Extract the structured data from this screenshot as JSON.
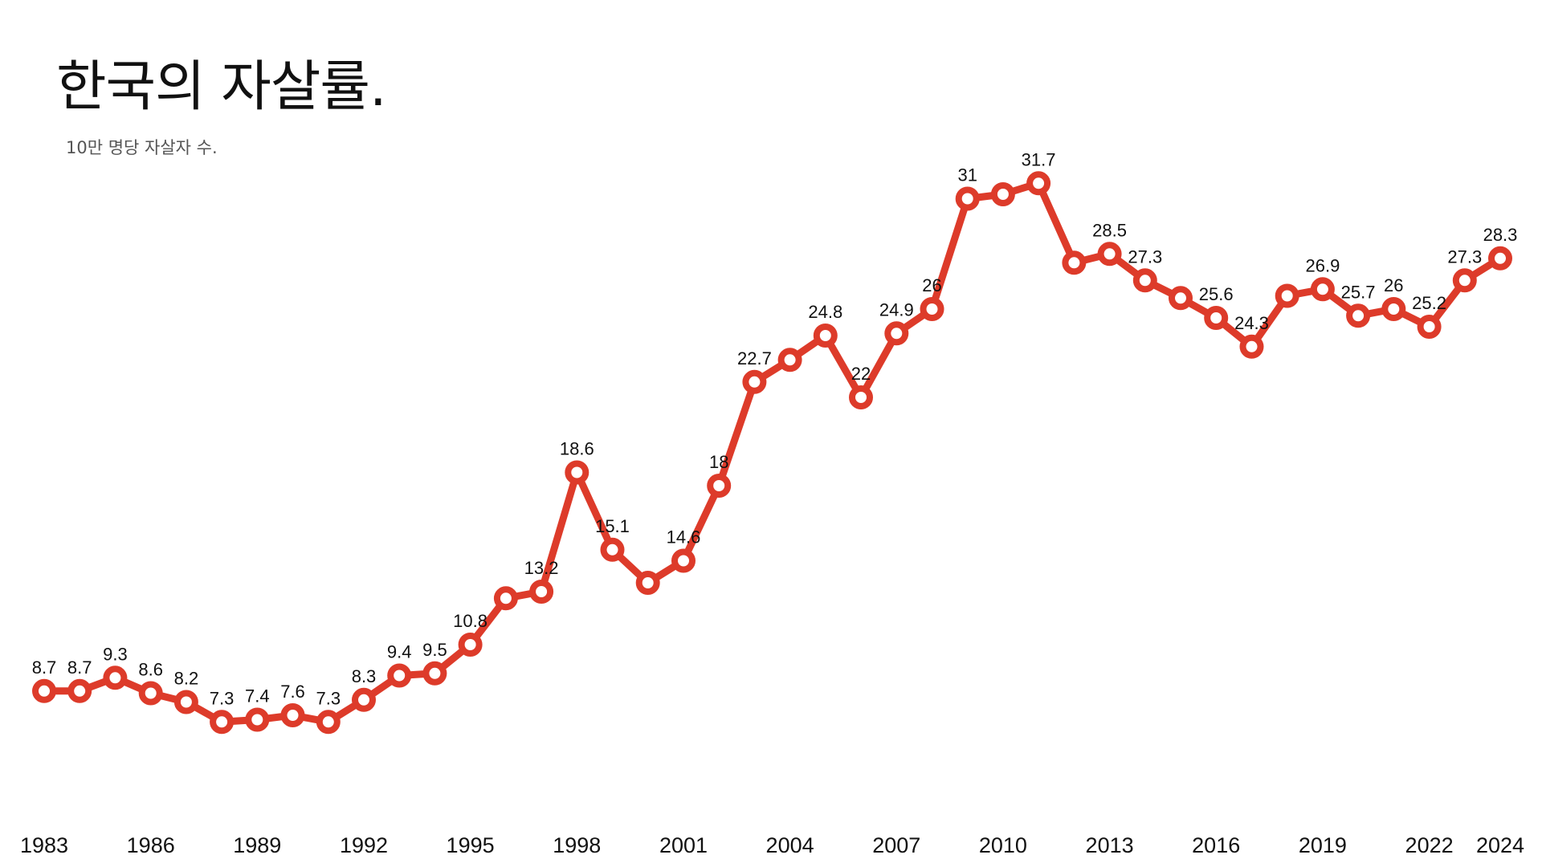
{
  "title": "한국의 자살률.",
  "subtitle": "10만 명당 자살자 수.",
  "colors": {
    "line": "#dd3b2a",
    "marker_fill": "#ffffff",
    "text": "#111111",
    "subtitle": "#555555"
  },
  "chart_data": {
    "type": "line",
    "title": "한국의 자살률.",
    "subtitle": "10만 명당 자살자 수.",
    "xlabel": "",
    "ylabel": "",
    "grid": false,
    "legend": "none",
    "x_ticks": [
      1983,
      1986,
      1989,
      1992,
      1995,
      1998,
      2001,
      2004,
      2007,
      2010,
      2013,
      2016,
      2019,
      2022,
      2024
    ],
    "x": [
      1983,
      1984,
      1985,
      1986,
      1987,
      1988,
      1989,
      1990,
      1991,
      1992,
      1993,
      1994,
      1995,
      1996,
      1997,
      1998,
      1999,
      2000,
      2001,
      2002,
      2003,
      2004,
      2005,
      2006,
      2007,
      2008,
      2009,
      2010,
      2011,
      2012,
      2013,
      2014,
      2015,
      2016,
      2017,
      2018,
      2019,
      2020,
      2021,
      2022,
      2023,
      2024
    ],
    "values": [
      8.7,
      8.7,
      9.3,
      8.6,
      8.2,
      7.3,
      7.4,
      7.6,
      7.3,
      8.3,
      9.4,
      9.5,
      10.8,
      12.9,
      13.2,
      18.6,
      15.1,
      13.6,
      14.6,
      18,
      22.7,
      23.7,
      24.8,
      22,
      24.9,
      26,
      31,
      31.2,
      31.7,
      28.1,
      28.5,
      27.3,
      26.5,
      25.6,
      24.3,
      26.6,
      26.9,
      25.7,
      26,
      25.2,
      27.3,
      28.3
    ],
    "labels": [
      "8.7",
      "8.7",
      "9.3",
      "8.6",
      "8.2",
      "7.3",
      "7.4",
      "7.6",
      "7.3",
      "8.3",
      "9.4",
      "9.5",
      "10.8",
      "",
      "13.2",
      "18.6",
      "15.1",
      "",
      "14.6",
      "18",
      "22.7",
      "",
      "24.8",
      "22",
      "24.9",
      "26",
      "31",
      "",
      "31.7",
      "",
      "28.5",
      "27.3",
      "",
      "25.6",
      "24.3",
      "",
      "26.9",
      "25.7",
      "26",
      "25.2",
      "27.3",
      "28.3"
    ],
    "ylim": [
      0,
      33
    ]
  }
}
